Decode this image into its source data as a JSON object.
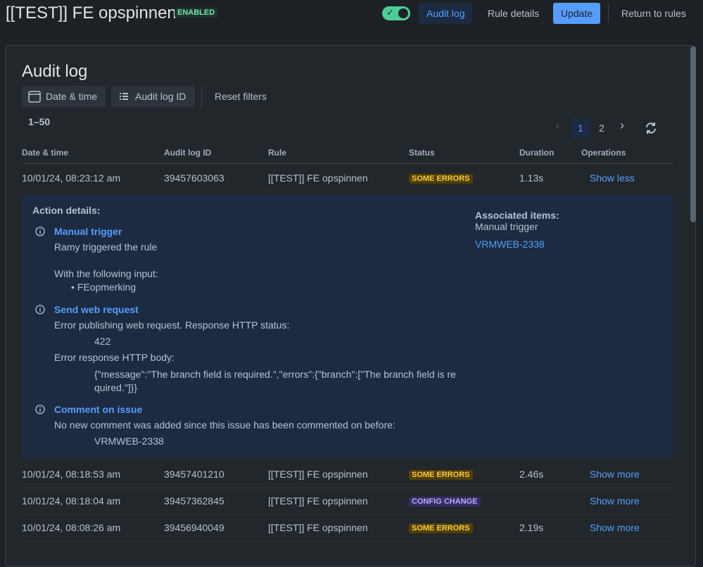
{
  "header": {
    "title": "[[TEST]] FE opspinnen",
    "badge": "ENABLED",
    "tabs": [
      "Audit log",
      "Rule details"
    ],
    "update": "Update",
    "return": "Return to rules"
  },
  "panel": {
    "title": "Audit log",
    "filters": [
      "Date & time",
      "Audit log ID"
    ],
    "reset": "Reset filters",
    "range": "1–50",
    "pages": [
      1,
      2
    ]
  },
  "table": {
    "columns": [
      "Date & time",
      "Audit log ID",
      "Rule",
      "Status",
      "Duration",
      "Operations"
    ],
    "rows": [
      {
        "date": "10/01/24, 08:23:12 am",
        "id": "39457603063",
        "rule": "[[TEST]] FE opspinnen",
        "status": "SOME ERRORS",
        "duration": "1.13s",
        "operation": "Show less"
      },
      {
        "date": "10/01/24, 08:18:53 am",
        "id": "39457401210",
        "rule": "[[TEST]] FE opspinnen",
        "status": "SOME ERRORS",
        "duration": "2.46s",
        "operation": "Show more"
      },
      {
        "date": "10/01/24, 08:18:04 am",
        "id": "39457362845",
        "rule": "[[TEST]] FE opspinnen",
        "status": "CONFIG CHANGE",
        "operation": "Show more"
      },
      {
        "date": "10/01/24, 08:08:26 am",
        "id": "39456940049",
        "rule": "[[TEST]] FE opspinnen",
        "status": "SOME ERRORS",
        "duration": "2.19s",
        "operation": "Show more"
      }
    ]
  },
  "details": {
    "title": "Action details:",
    "actions": [
      {
        "title": "Manual trigger",
        "text": "Ramy triggered the rule",
        "input_label": "With the following input:",
        "inputs": [
          "FEopmerking"
        ]
      },
      {
        "title": "Send web request",
        "text": "Error publishing web request. Response HTTP status:",
        "status": "422",
        "body_label": "Error response HTTP body:",
        "body": "{\"message\":\"The branch field is required.\",\"errors\":{\"branch\":[\"The branch field is required.\"]}}"
      },
      {
        "title": "Comment on issue",
        "text": "No new comment was added since this issue has been commented on before:",
        "issue": "VRMWEB-2338"
      }
    ],
    "associated": {
      "title": "Associated items:",
      "type": "Manual trigger",
      "link": "VRMWEB-2338"
    }
  }
}
